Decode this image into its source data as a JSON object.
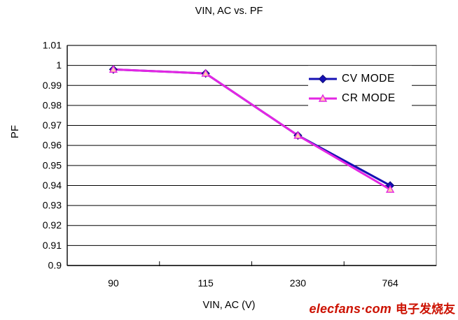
{
  "chart_data": {
    "type": "line",
    "title": "VIN, AC vs. PF",
    "xlabel": "VIN, AC (V)",
    "ylabel": "PF",
    "categories": [
      "90",
      "115",
      "230",
      "764"
    ],
    "series": [
      {
        "name": "CV MODE",
        "marker": "diamond",
        "line_color": "#1510b4",
        "marker_fill": "#1510b4",
        "marker_stroke": "#0d0a78",
        "values": [
          0.998,
          0.996,
          0.965,
          0.94
        ]
      },
      {
        "name": "CR MODE",
        "marker": "triangle",
        "line_color": "#e326e3",
        "marker_fill": "#ffccaa",
        "marker_stroke": "#e326e3",
        "values": [
          0.998,
          0.996,
          0.965,
          0.938
        ]
      }
    ],
    "ylim": [
      0.9,
      1.01
    ],
    "yticks": [
      "1.01",
      "1",
      "0.99",
      "0.98",
      "0.97",
      "0.96",
      "0.95",
      "0.94",
      "0.93",
      "0.92",
      "0.91",
      "0.9"
    ],
    "grid": true,
    "legend_position": "inside-right",
    "plot_border_color": "#7f7f7f",
    "gridline_color": "#000000"
  },
  "watermark": {
    "brand": "elecfans·com",
    "suffix": "电子发烧友",
    "color": "#cc1100"
  }
}
